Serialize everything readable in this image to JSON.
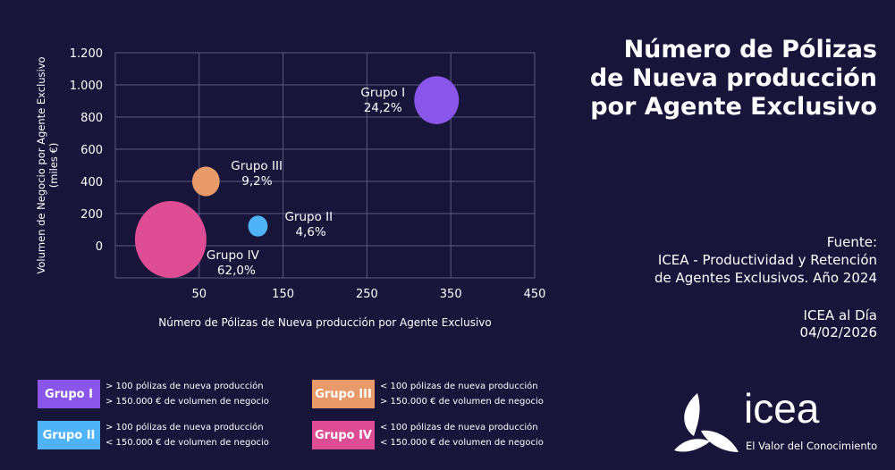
{
  "chart_data": {
    "type": "scatter",
    "subtype": "bubble",
    "xlabel": "Número de Pólizas de Nueva producción por Agente Exclusivo",
    "ylabel": "Volumen de Negocio por Agente Exclusivo",
    "ylabel2": "(miles €)",
    "xlim": [
      -50,
      450
    ],
    "ylim": [
      -200,
      1200
    ],
    "xticks": [
      50,
      150,
      250,
      350,
      450
    ],
    "xtick_labels": [
      "50",
      "150",
      "250",
      "350",
      "450"
    ],
    "yticks": [
      0,
      200,
      400,
      600,
      800,
      1000,
      1200
    ],
    "ytick_labels": [
      "0",
      "200",
      "400",
      "600",
      "800",
      "1.000",
      "1.200"
    ],
    "grid": true,
    "series": [
      {
        "name": "Grupo I",
        "x": 333,
        "y": 905,
        "size": 24.2,
        "label": "24,2%",
        "color": "#8a55e9"
      },
      {
        "name": "Grupo II",
        "x": 120,
        "y": 122,
        "size": 4.6,
        "label": "4,6%",
        "color": "#4fb3f8"
      },
      {
        "name": "Grupo III",
        "x": 58,
        "y": 400,
        "size": 9.2,
        "label": "9,2%",
        "color": "#e89a6a"
      },
      {
        "name": "Grupo IV",
        "x": 16,
        "y": 39,
        "size": 62.0,
        "label": "62,0%",
        "color": "#de4c93"
      }
    ]
  },
  "title": "Número de Pólizas de Nueva producción por Agente Exclusivo",
  "source": {
    "label": "Fuente:",
    "line1": "ICEA - Productividad y Retención",
    "line2": "de Agentes Exclusivos. Año 2024"
  },
  "publication": {
    "name": "ICEA al Día",
    "date": "04/02/2026"
  },
  "legend": [
    {
      "label": "Grupo I",
      "color": "#8a55e9",
      "line1": "> 100 pólizas de nueva producción",
      "line2": "> 150.000 € de volumen de negocio"
    },
    {
      "label": "Grupo II",
      "color": "#4fb3f8",
      "line1": "> 100 pólizas de nueva producción",
      "line2": "< 150.000 € de volumen de negocio"
    },
    {
      "label": "Grupo III",
      "color": "#e89a6a",
      "line1": "< 100 pólizas de nueva producción",
      "line2": "> 150.000 € de volumen de negocio"
    },
    {
      "label": "Grupo IV",
      "color": "#de4c93",
      "line1": "< 100 pólizas de nueva producción",
      "line2": "< 150.000 € de volumen de negocio"
    }
  ],
  "logo": {
    "word": "icea",
    "tagline": "El Valor del Conocimiento"
  }
}
